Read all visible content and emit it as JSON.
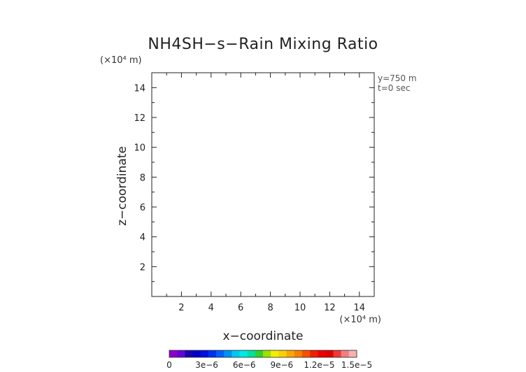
{
  "chart_data": {
    "type": "heatmap",
    "title": "NH4SH−s−Rain Mixing Ratio",
    "xlabel": "x−coordinate",
    "ylabel": "z−coordinate",
    "x_unit_label": "(×10⁴ m)",
    "y_unit_label": "(×10⁴ m)",
    "xlim": [
      0,
      15
    ],
    "ylim": [
      0,
      15
    ],
    "x_ticks": [
      2,
      4,
      6,
      8,
      10,
      12,
      14
    ],
    "y_ticks": [
      2,
      4,
      6,
      8,
      10,
      12,
      14
    ],
    "x_tick_labels": [
      "2",
      "4",
      "6",
      "8",
      "10",
      "12",
      "14"
    ],
    "y_tick_labels": [
      "2",
      "4",
      "6",
      "8",
      "10",
      "12",
      "14"
    ],
    "annotations": [
      "y=750 m",
      "t=0 sec"
    ],
    "field_values": [],
    "grid": false,
    "colorbar": {
      "range": [
        0,
        1.5e-05
      ],
      "labels": [
        "0",
        "3e−6",
        "6e−6",
        "9e−6",
        "1.2e−5",
        "1.5e−5"
      ],
      "colors": [
        "#8b00c8",
        "#6a00d8",
        "#1a00b0",
        "#0000c8",
        "#0010e0",
        "#0030f0",
        "#0060f8",
        "#0090f8",
        "#00c8f0",
        "#00e8e8",
        "#00e0a0",
        "#30d030",
        "#a0e000",
        "#f0f000",
        "#f8d000",
        "#f8a800",
        "#f88000",
        "#f85000",
        "#f02000",
        "#f00000",
        "#e00000",
        "#f03838",
        "#f08080",
        "#f8b0b0"
      ]
    }
  }
}
